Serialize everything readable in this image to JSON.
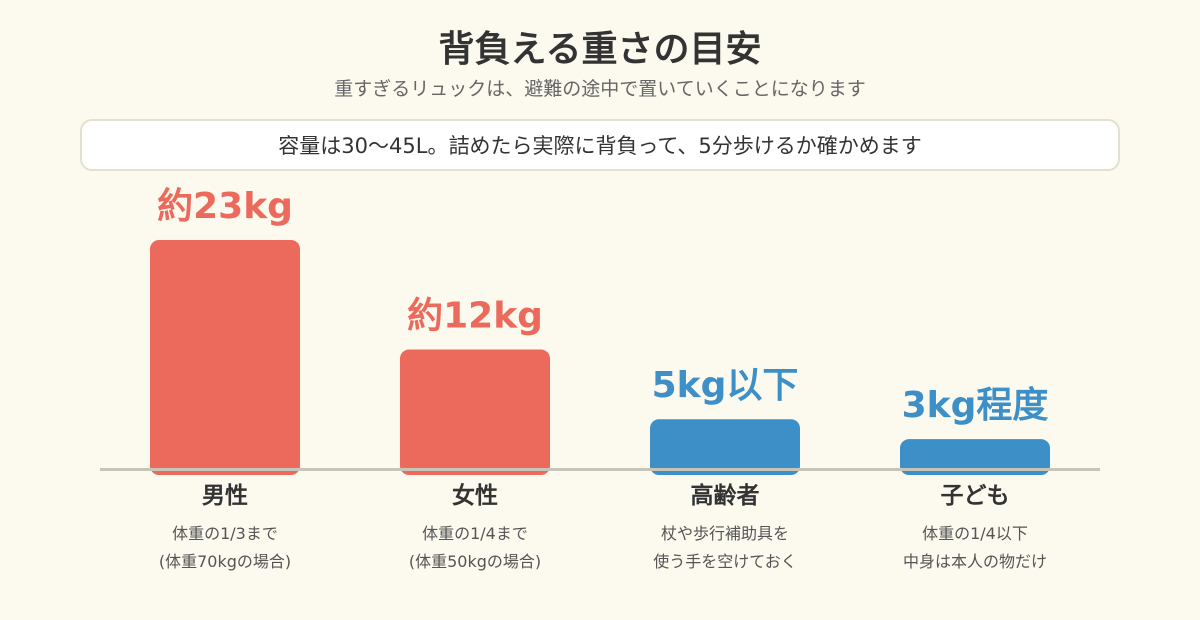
{
  "header": {
    "title": "背負える重さの目安",
    "subtitle": "重すぎるリュックは、避難の途中で置いていくことになります",
    "note": "容量は30〜45L。詰めたら実際に背負って、5分歩けるか確かめます"
  },
  "colors": {
    "adult": "#ec6a5c",
    "vulnerable": "#3d8fc8",
    "baseline": "#c8c4b8"
  },
  "chart_data": {
    "type": "bar",
    "categories": [
      "男性",
      "女性",
      "高齢者",
      "子ども"
    ],
    "values": [
      23,
      12,
      5,
      3
    ],
    "value_labels": [
      "約23kg",
      "約12kg",
      "5kg以下",
      "3kg程度"
    ],
    "descriptions": [
      [
        "体重の1/3まで",
        "(体重70kgの場合)"
      ],
      [
        "体重の1/4まで",
        "(体重50kgの場合)"
      ],
      [
        "杖や歩行補助具を",
        "使う手を空けておく"
      ],
      [
        "体重の1/4以下",
        "中身は本人の物だけ"
      ]
    ],
    "bar_color_keys": [
      "adult",
      "adult",
      "vulnerable",
      "vulnerable"
    ],
    "ylim": [
      0,
      23
    ],
    "grid": false,
    "xlabel": "",
    "ylabel": ""
  }
}
